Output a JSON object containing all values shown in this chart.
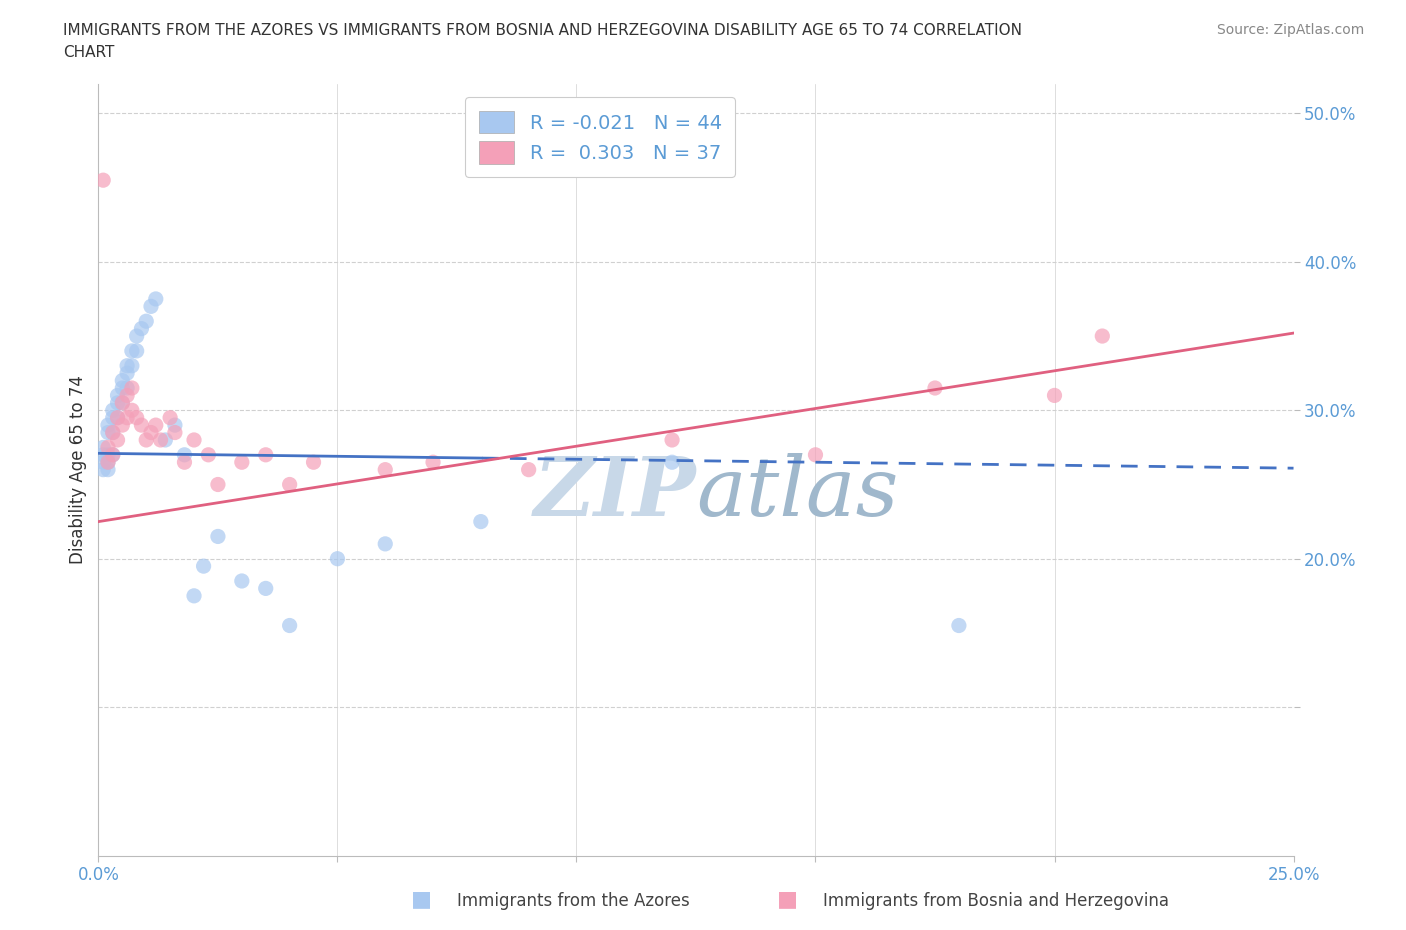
{
  "title_line1": "IMMIGRANTS FROM THE AZORES VS IMMIGRANTS FROM BOSNIA AND HERZEGOVINA DISABILITY AGE 65 TO 74 CORRELATION",
  "title_line2": "CHART",
  "source": "Source: ZipAtlas.com",
  "ylabel": "Disability Age 65 to 74",
  "legend_label_blue": "Immigrants from the Azores",
  "legend_label_pink": "Immigrants from Bosnia and Herzegovina",
  "R_blue": -0.021,
  "N_blue": 44,
  "R_pink": 0.303,
  "N_pink": 37,
  "x_min": 0.0,
  "x_max": 0.25,
  "y_min": 0.0,
  "y_max": 0.52,
  "color_blue": "#a8c8f0",
  "color_pink": "#f4a0b8",
  "trend_color_blue": "#4472c4",
  "trend_color_pink": "#e06080",
  "background_color": "#ffffff",
  "tick_color": "#5B9BD5",
  "grid_color": "#d0d0d0",
  "watermark_color": "#c8d8e8",
  "blue_x": [
    0.001,
    0.001,
    0.001,
    0.001,
    0.002,
    0.002,
    0.002,
    0.002,
    0.002,
    0.003,
    0.003,
    0.003,
    0.003,
    0.004,
    0.004,
    0.004,
    0.005,
    0.005,
    0.005,
    0.006,
    0.006,
    0.006,
    0.007,
    0.007,
    0.008,
    0.008,
    0.009,
    0.01,
    0.011,
    0.012,
    0.014,
    0.016,
    0.018,
    0.02,
    0.022,
    0.025,
    0.03,
    0.035,
    0.04,
    0.05,
    0.06,
    0.08,
    0.12,
    0.18
  ],
  "blue_y": [
    0.265,
    0.27,
    0.275,
    0.26,
    0.29,
    0.285,
    0.27,
    0.265,
    0.26,
    0.3,
    0.295,
    0.285,
    0.27,
    0.31,
    0.305,
    0.295,
    0.32,
    0.315,
    0.305,
    0.33,
    0.325,
    0.315,
    0.34,
    0.33,
    0.35,
    0.34,
    0.355,
    0.36,
    0.37,
    0.375,
    0.28,
    0.29,
    0.27,
    0.175,
    0.195,
    0.215,
    0.185,
    0.18,
    0.155,
    0.2,
    0.21,
    0.225,
    0.265,
    0.155
  ],
  "pink_x": [
    0.001,
    0.002,
    0.002,
    0.003,
    0.003,
    0.004,
    0.004,
    0.005,
    0.005,
    0.006,
    0.006,
    0.007,
    0.007,
    0.008,
    0.009,
    0.01,
    0.011,
    0.012,
    0.013,
    0.015,
    0.016,
    0.018,
    0.02,
    0.023,
    0.025,
    0.03,
    0.035,
    0.04,
    0.045,
    0.06,
    0.07,
    0.09,
    0.12,
    0.15,
    0.175,
    0.2,
    0.21
  ],
  "pink_y": [
    0.455,
    0.265,
    0.275,
    0.285,
    0.27,
    0.295,
    0.28,
    0.305,
    0.29,
    0.31,
    0.295,
    0.315,
    0.3,
    0.295,
    0.29,
    0.28,
    0.285,
    0.29,
    0.28,
    0.295,
    0.285,
    0.265,
    0.28,
    0.27,
    0.25,
    0.265,
    0.27,
    0.25,
    0.265,
    0.26,
    0.265,
    0.26,
    0.28,
    0.27,
    0.315,
    0.31,
    0.35
  ]
}
